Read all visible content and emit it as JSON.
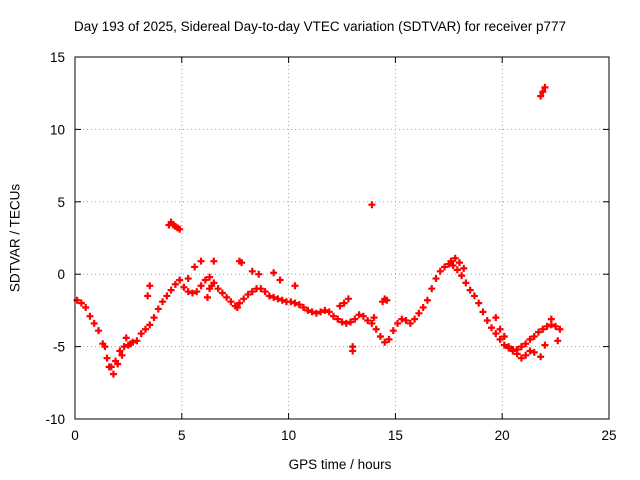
{
  "chart_data": {
    "type": "scatter",
    "title": "Day 193 of 2025, Sidereal Day-to-day VTEC variation (SDTVAR) for receiver p777",
    "xlabel": "GPS time / hours",
    "ylabel": "SDTVAR / TECUs",
    "xlim": [
      0,
      25
    ],
    "ylim": [
      -10,
      15
    ],
    "xticks": [
      "0",
      "5",
      "10",
      "15",
      "20",
      "25"
    ],
    "yticks": [
      "-10",
      "-5",
      "0",
      "5",
      "10",
      "15"
    ],
    "grid": true,
    "marker": "+",
    "color": "#ff0000",
    "series": [
      {
        "name": "SDTVAR",
        "x": [
          0.1,
          0.3,
          0.5,
          0.7,
          0.9,
          1.1,
          1.3,
          1.5,
          1.7,
          1.9,
          2.1,
          2.3,
          2.5,
          2.7,
          2.9,
          3.1,
          3.3,
          3.5,
          3.7,
          3.9,
          4.1,
          4.3,
          4.5,
          4.7,
          4.9,
          5.1,
          5.3,
          5.5,
          5.7,
          5.9,
          6.1,
          6.3,
          6.5,
          6.7,
          6.9,
          7.1,
          7.3,
          7.5,
          7.7,
          7.9,
          8.1,
          8.3,
          8.5,
          8.7,
          8.9,
          9.1,
          9.3,
          9.5,
          9.7,
          9.9,
          10.1,
          10.3,
          10.5,
          10.7,
          10.9,
          11.1,
          11.3,
          11.5,
          11.7,
          11.9,
          12.1,
          12.3,
          12.5,
          12.7,
          12.9,
          13.1,
          13.3,
          13.5,
          13.7,
          13.9,
          14.1,
          14.3,
          14.5,
          14.7,
          14.9,
          15.1,
          15.3,
          15.5,
          15.7,
          15.9,
          16.1,
          16.3,
          16.5,
          16.7,
          16.9,
          17.1,
          17.3,
          17.5,
          17.7,
          17.9,
          18.1,
          18.3,
          18.5,
          18.7,
          18.9,
          19.1,
          19.3,
          19.5,
          19.7,
          19.9,
          20.1,
          20.3,
          20.5,
          20.7,
          20.9,
          21.1,
          21.3,
          21.5,
          21.7,
          21.9,
          22.1,
          22.3,
          22.5,
          22.7,
          1.4,
          1.6,
          1.8,
          2.0,
          2.2,
          2.4,
          2.6,
          3.4,
          3.5,
          4.4,
          4.5,
          4.6,
          4.7,
          4.8,
          4.9,
          5.3,
          5.6,
          5.9,
          6.2,
          6.3,
          6.4,
          6.5,
          7.6,
          7.7,
          7.8,
          8.3,
          8.6,
          9.3,
          9.6,
          10.3,
          12.4,
          12.6,
          12.8,
          13.0,
          13.0,
          13.9,
          14.0,
          14.4,
          14.5,
          14.6,
          17.6,
          17.8,
          18.0,
          18.2,
          19.7,
          19.9,
          20.1,
          20.3,
          20.5,
          20.7,
          20.9,
          21.1,
          21.3,
          21.5,
          21.8,
          22.0,
          22.3,
          22.6,
          21.8,
          21.9,
          22.0
        ],
        "y": [
          -1.8,
          -2.0,
          -2.3,
          -2.9,
          -3.4,
          -3.9,
          -4.8,
          -5.8,
          -6.4,
          -6.0,
          -5.3,
          -5.0,
          -4.9,
          -4.7,
          -4.6,
          -4.1,
          -3.8,
          -3.5,
          -3.0,
          -2.4,
          -1.9,
          -1.5,
          -1.1,
          -0.7,
          -0.4,
          -0.9,
          -1.2,
          -1.3,
          -1.2,
          -0.8,
          -0.4,
          -0.2,
          -0.6,
          -1.0,
          -1.3,
          -1.6,
          -1.9,
          -2.2,
          -2.0,
          -1.7,
          -1.4,
          -1.2,
          -1.0,
          -1.0,
          -1.2,
          -1.5,
          -1.6,
          -1.7,
          -1.8,
          -1.9,
          -1.9,
          -2.0,
          -2.1,
          -2.3,
          -2.5,
          -2.6,
          -2.7,
          -2.6,
          -2.5,
          -2.6,
          -2.9,
          -3.1,
          -3.3,
          -3.4,
          -3.3,
          -3.1,
          -2.8,
          -2.9,
          -3.2,
          -3.4,
          -3.8,
          -4.3,
          -4.7,
          -4.5,
          -3.9,
          -3.4,
          -3.1,
          -3.2,
          -3.4,
          -3.1,
          -2.7,
          -2.3,
          -1.8,
          -1.0,
          -0.3,
          0.2,
          0.5,
          0.7,
          0.6,
          0.3,
          -0.1,
          -0.6,
          -1.1,
          -1.5,
          -2.0,
          -2.6,
          -3.2,
          -3.7,
          -4.1,
          -4.5,
          -4.9,
          -5.1,
          -5.3,
          -5.2,
          -5.0,
          -4.8,
          -4.5,
          -4.3,
          -4.0,
          -3.8,
          -3.6,
          -3.5,
          -3.6,
          -3.8,
          -5.0,
          -6.4,
          -6.9,
          -6.2,
          -5.6,
          -4.4,
          -4.8,
          -1.5,
          -0.8,
          3.4,
          3.6,
          3.4,
          3.3,
          3.2,
          3.1,
          -0.3,
          0.5,
          0.9,
          -1.6,
          -1.0,
          -0.8,
          0.9,
          -2.3,
          0.9,
          0.8,
          0.2,
          0.0,
          0.1,
          -0.4,
          -0.8,
          -2.2,
          -2.0,
          -1.7,
          -5.3,
          -5.0,
          4.8,
          -3.0,
          -1.9,
          -1.7,
          -1.8,
          0.9,
          1.1,
          0.8,
          0.4,
          -3.0,
          -3.8,
          -4.3,
          -5.0,
          -5.2,
          -5.5,
          -5.8,
          -5.6,
          -5.3,
          -5.4,
          -5.7,
          -4.9,
          -3.1,
          -4.6,
          12.3,
          12.6,
          12.9
        ]
      }
    ]
  }
}
